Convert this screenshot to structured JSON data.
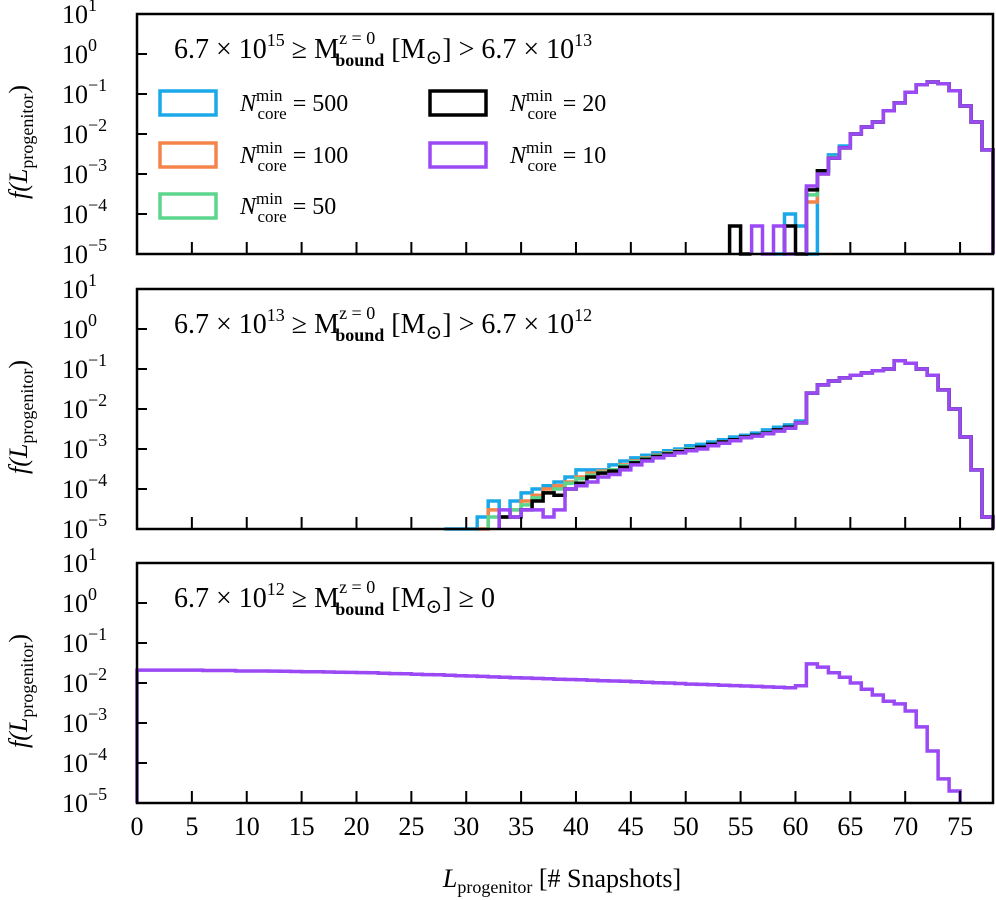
{
  "chart_data": {
    "type": "step-histogram",
    "xlabel_main": "L",
    "xlabel_sub": "progenitor",
    "xlabel_unit": "[# Snapshots]",
    "ylabel_main": "f(L",
    "ylabel_sub": "progenitor",
    "ylabel_close": ")",
    "xlim": [
      0,
      78
    ],
    "ylim_log10": [
      -5,
      1
    ],
    "x_ticks": [
      0,
      5,
      10,
      15,
      20,
      25,
      30,
      35,
      40,
      45,
      50,
      55,
      60,
      65,
      70,
      75
    ],
    "y_tick_exponents": [
      "1",
      "0",
      "−1",
      "−2",
      "−3",
      "−4",
      "−5"
    ],
    "y_tick_base": "10",
    "legend": [
      {
        "name": "N",
        "sup": "min",
        "sub": "core",
        "value": "= 500",
        "color": "#1ba8e8"
      },
      {
        "name": "N",
        "sup": "min",
        "sub": "core",
        "value": "= 100",
        "color": "#f5844a"
      },
      {
        "name": "N",
        "sup": "min",
        "sub": "core",
        "value": "= 50",
        "color": "#5cd68c"
      },
      {
        "name": "N",
        "sup": "min",
        "sub": "core",
        "value": "= 20",
        "color": "#000000"
      },
      {
        "name": "N",
        "sup": "min",
        "sub": "core",
        "value": "= 10",
        "color": "#9b48f5"
      }
    ],
    "panels": [
      {
        "title_left": "6.7 × 10",
        "title_left_exp": "15",
        "title_mid": " ≥ M",
        "title_sup": "z = 0",
        "title_sub": "bound",
        "title_right": " [M",
        "title_sun": "⊙",
        "title_end": "] > 6.7 × 10",
        "title_end_exp": "13",
        "series": [
          {
            "name": "500",
            "color": "#1ba8e8",
            "x": [
              58,
              59,
              60,
              61,
              62,
              63,
              64,
              65,
              66,
              67,
              68,
              69,
              70,
              71,
              72,
              73,
              74,
              75,
              76,
              77
            ],
            "values": [
              1e-05,
              0.0001,
              5e-05,
              1e-05,
              0.0012,
              0.003,
              0.005,
              0.01,
              0.015,
              0.02,
              0.038,
              0.06,
              0.11,
              0.17,
              0.2,
              0.18,
              0.12,
              0.05,
              0.02,
              0.004
            ]
          },
          {
            "name": "100",
            "color": "#f5844a",
            "x": [
              61,
              62,
              63,
              64,
              65,
              66,
              67,
              68,
              69,
              70,
              71,
              72,
              73,
              74,
              75,
              76,
              77
            ],
            "values": [
              0.0002,
              0.001,
              0.0025,
              0.0045,
              0.01,
              0.015,
              0.02,
              0.038,
              0.06,
              0.11,
              0.17,
              0.2,
              0.18,
              0.12,
              0.05,
              0.02,
              0.004
            ]
          },
          {
            "name": "50",
            "color": "#5cd68c",
            "x": [
              61,
              62,
              63,
              64,
              65,
              66,
              67,
              68,
              69,
              70,
              71,
              72,
              73,
              74,
              75,
              76,
              77
            ],
            "values": [
              0.0003,
              0.0011,
              0.0026,
              0.0045,
              0.01,
              0.015,
              0.02,
              0.038,
              0.06,
              0.11,
              0.17,
              0.2,
              0.18,
              0.12,
              0.05,
              0.02,
              0.004
            ]
          },
          {
            "name": "20",
            "color": "#000000",
            "x": [
              54,
              55,
              59,
              60,
              61,
              62,
              63,
              64,
              65,
              66,
              67,
              68,
              69,
              70,
              71,
              72,
              73,
              74,
              75,
              76,
              77
            ],
            "values": [
              5e-05,
              1e-05,
              5e-05,
              1e-05,
              0.0004,
              0.0012,
              0.0025,
              0.0045,
              0.01,
              0.015,
              0.02,
              0.038,
              0.06,
              0.11,
              0.17,
              0.2,
              0.18,
              0.12,
              0.05,
              0.02,
              0.004
            ]
          },
          {
            "name": "10",
            "color": "#9b48f5",
            "x": [
              56,
              57,
              58,
              59,
              61,
              62,
              63,
              64,
              65,
              66,
              67,
              68,
              69,
              70,
              71,
              72,
              73,
              74,
              75,
              76,
              77
            ],
            "values": [
              5e-05,
              1e-05,
              5e-05,
              1e-05,
              0.0005,
              0.001,
              0.0025,
              0.0045,
              0.01,
              0.015,
              0.02,
              0.038,
              0.06,
              0.11,
              0.17,
              0.2,
              0.18,
              0.12,
              0.05,
              0.02,
              0.004
            ]
          }
        ]
      },
      {
        "title_left": "6.7 × 10",
        "title_left_exp": "13",
        "title_mid": " ≥ M",
        "title_sup": "z = 0",
        "title_sub": "bound",
        "title_right": " [M",
        "title_sun": "⊙",
        "title_end": "] > 6.7 × 10",
        "title_end_exp": "12",
        "series": [
          {
            "name": "500",
            "color": "#1ba8e8",
            "x": [
              28,
              29,
              30,
              31,
              32,
              33,
              34,
              35,
              36,
              37,
              38,
              39,
              40,
              41,
              42,
              43,
              44,
              45,
              46,
              47,
              48,
              49,
              50,
              51,
              52,
              53,
              54,
              55,
              56,
              57,
              58,
              59,
              60,
              61,
              62,
              63,
              64,
              65,
              66,
              67,
              68,
              69,
              70,
              71,
              72,
              73,
              74,
              75,
              76,
              77
            ],
            "values": [
              1e-05,
              1e-05,
              1e-05,
              2e-05,
              5e-05,
              2e-05,
              5e-05,
              8e-05,
              0.0001,
              0.00012,
              0.00015,
              0.0002,
              0.0003,
              0.0003,
              0.0003,
              0.0004,
              0.0005,
              0.0006,
              0.0007,
              0.0008,
              0.0009,
              0.001,
              0.0012,
              0.0013,
              0.0015,
              0.0017,
              0.002,
              0.0022,
              0.0025,
              0.003,
              0.0035,
              0.004,
              0.005,
              0.025,
              0.04,
              0.05,
              0.06,
              0.07,
              0.08,
              0.09,
              0.1,
              0.16,
              0.14,
              0.1,
              0.07,
              0.03,
              0.01,
              0.002,
              0.0003,
              2e-05
            ]
          },
          {
            "name": "100",
            "color": "#f5844a",
            "x": [
              31,
              32,
              33,
              34,
              35,
              36,
              37,
              38,
              39,
              40,
              41,
              42,
              43,
              44,
              45,
              46,
              47,
              48,
              49,
              50,
              51,
              52,
              53,
              54,
              55,
              56,
              57,
              58,
              59,
              60,
              61,
              62,
              63,
              64,
              65,
              66,
              67,
              68,
              69,
              70,
              71,
              72,
              73,
              74,
              75,
              76,
              77
            ],
            "values": [
              1e-05,
              3e-05,
              2e-05,
              3e-05,
              5e-05,
              7e-05,
              0.0001,
              0.00012,
              0.00015,
              0.0002,
              0.00025,
              0.00028,
              0.0003,
              0.0004,
              0.0005,
              0.0006,
              0.0007,
              0.0008,
              0.0009,
              0.001,
              0.0011,
              0.0013,
              0.0015,
              0.0017,
              0.002,
              0.0022,
              0.0025,
              0.003,
              0.0035,
              0.0045,
              0.025,
              0.04,
              0.05,
              0.06,
              0.07,
              0.08,
              0.09,
              0.1,
              0.16,
              0.14,
              0.1,
              0.07,
              0.03,
              0.01,
              0.002,
              0.0003,
              2e-05
            ]
          },
          {
            "name": "50",
            "color": "#5cd68c",
            "x": [
              32,
              33,
              34,
              35,
              36,
              37,
              38,
              39,
              40,
              41,
              42,
              43,
              44,
              45,
              46,
              47,
              48,
              49,
              50,
              51,
              52,
              53,
              54,
              55,
              56,
              57,
              58,
              59,
              60,
              61,
              62,
              63,
              64,
              65,
              66,
              67,
              68,
              69,
              70,
              71,
              72,
              73,
              74,
              75,
              76,
              77
            ],
            "values": [
              2e-05,
              2e-05,
              3e-05,
              4e-05,
              6e-05,
              8e-05,
              0.0001,
              0.00014,
              0.00018,
              0.00022,
              0.00026,
              0.0003,
              0.00038,
              0.00048,
              0.00058,
              0.00068,
              0.00078,
              0.00088,
              0.001,
              0.0011,
              0.0013,
              0.0015,
              0.0017,
              0.002,
              0.0022,
              0.0025,
              0.003,
              0.0035,
              0.0045,
              0.025,
              0.04,
              0.05,
              0.06,
              0.07,
              0.08,
              0.09,
              0.1,
              0.16,
              0.14,
              0.1,
              0.07,
              0.03,
              0.01,
              0.002,
              0.0003,
              2e-05
            ]
          },
          {
            "name": "20",
            "color": "#000000",
            "x": [
              33,
              34,
              35,
              36,
              37,
              38,
              39,
              40,
              41,
              42,
              43,
              44,
              45,
              46,
              47,
              48,
              49,
              50,
              51,
              52,
              53,
              54,
              55,
              56,
              57,
              58,
              59,
              60,
              61,
              62,
              63,
              64,
              65,
              66,
              67,
              68,
              69,
              70,
              71,
              72,
              73,
              74,
              75,
              76,
              77
            ],
            "values": [
              2e-05,
              2e-05,
              3e-05,
              5e-05,
              8e-05,
              7e-05,
              0.0001,
              0.00014,
              0.0002,
              0.00025,
              0.00028,
              0.00035,
              0.00045,
              0.00055,
              0.00065,
              0.00075,
              0.00085,
              0.00095,
              0.0011,
              0.0013,
              0.0015,
              0.0017,
              0.002,
              0.0022,
              0.0025,
              0.003,
              0.0035,
              0.0045,
              0.025,
              0.04,
              0.05,
              0.06,
              0.07,
              0.08,
              0.09,
              0.1,
              0.16,
              0.14,
              0.1,
              0.07,
              0.03,
              0.01,
              0.002,
              0.0003,
              2e-05
            ]
          },
          {
            "name": "10",
            "color": "#9b48f5",
            "x": [
              33,
              34,
              35,
              36,
              37,
              38,
              39,
              40,
              41,
              42,
              43,
              44,
              45,
              46,
              47,
              48,
              49,
              50,
              51,
              52,
              53,
              54,
              55,
              56,
              57,
              58,
              59,
              60,
              61,
              62,
              63,
              64,
              65,
              66,
              67,
              68,
              69,
              70,
              71,
              72,
              73,
              74,
              75,
              76,
              77
            ],
            "values": [
              3e-05,
              2e-05,
              3e-05,
              3e-05,
              2e-05,
              3e-05,
              0.0001,
              0.00012,
              0.00015,
              0.0002,
              0.00023,
              0.0003,
              0.0004,
              0.0005,
              0.0006,
              0.0007,
              0.0008,
              0.0009,
              0.001,
              0.0012,
              0.0014,
              0.0016,
              0.0019,
              0.0021,
              0.0024,
              0.0028,
              0.0033,
              0.0045,
              0.025,
              0.04,
              0.05,
              0.06,
              0.07,
              0.08,
              0.09,
              0.1,
              0.16,
              0.14,
              0.1,
              0.07,
              0.03,
              0.01,
              0.002,
              0.0003,
              2e-05
            ]
          }
        ]
      },
      {
        "title_left": "6.7 × 10",
        "title_left_exp": "12",
        "title_mid": " ≥ M",
        "title_sup": "z = 0",
        "title_sub": "bound",
        "title_right": " [M",
        "title_sun": "⊙",
        "title_end": "] ≥ 0",
        "title_end_exp": "",
        "series": [
          {
            "name": "10",
            "color": "#9b48f5",
            "x": [
              0,
              1,
              2,
              3,
              4,
              5,
              6,
              7,
              8,
              9,
              10,
              11,
              12,
              13,
              14,
              15,
              16,
              17,
              18,
              19,
              20,
              21,
              22,
              23,
              24,
              25,
              26,
              27,
              28,
              29,
              30,
              31,
              32,
              33,
              34,
              35,
              36,
              37,
              38,
              39,
              40,
              41,
              42,
              43,
              44,
              45,
              46,
              47,
              48,
              49,
              50,
              51,
              52,
              53,
              54,
              55,
              56,
              57,
              58,
              59,
              60,
              61,
              62,
              63,
              64,
              65,
              66,
              67,
              68,
              69,
              70,
              71,
              72,
              73,
              74
            ],
            "values": [
              0.021,
              0.021,
              0.021,
              0.021,
              0.021,
              0.021,
              0.0205,
              0.0205,
              0.0205,
              0.02,
              0.02,
              0.02,
              0.0198,
              0.0196,
              0.0194,
              0.0192,
              0.019,
              0.0188,
              0.0186,
              0.0184,
              0.0182,
              0.018,
              0.0176,
              0.0172,
              0.017,
              0.0166,
              0.0162,
              0.016,
              0.0156,
              0.0152,
              0.015,
              0.0146,
              0.0142,
              0.014,
              0.0136,
              0.0133,
              0.013,
              0.0127,
              0.0124,
              0.0122,
              0.012,
              0.0117,
              0.0114,
              0.0112,
              0.011,
              0.0107,
              0.0104,
              0.0102,
              0.01,
              0.0097,
              0.0094,
              0.0092,
              0.009,
              0.0088,
              0.0086,
              0.0084,
              0.0082,
              0.008,
              0.0078,
              0.0076,
              0.0085,
              0.03,
              0.025,
              0.018,
              0.014,
              0.01,
              0.007,
              0.005,
              0.0035,
              0.003,
              0.002,
              0.0008,
              0.0002,
              4e-05,
              2e-05
            ]
          }
        ]
      }
    ]
  }
}
